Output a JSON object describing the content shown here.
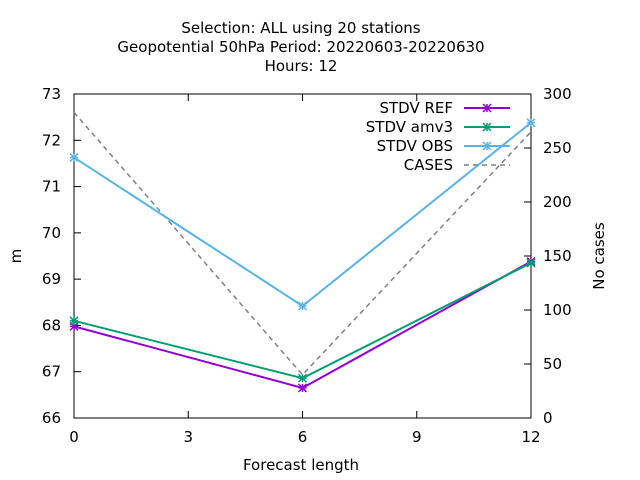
{
  "chart_data": {
    "type": "line",
    "title_lines": [
      "Selection: ALL using    20 stations",
      "Geopotential 50hPa   Period: 20220603-20220630",
      "Hours:  12"
    ],
    "xlabel": "Forecast length",
    "ylabel": "m",
    "y2label": "No cases",
    "xlim": [
      0,
      12
    ],
    "ylim": [
      66,
      73
    ],
    "y2lim": [
      0,
      300
    ],
    "xticks": [
      0,
      3,
      6,
      9,
      12
    ],
    "yticks": [
      66,
      67,
      68,
      69,
      70,
      71,
      72,
      73
    ],
    "y2ticks": [
      0,
      50,
      100,
      150,
      200,
      250,
      300
    ],
    "grid": false,
    "legend_position": "top-right",
    "x": [
      0,
      6,
      12
    ],
    "series": [
      {
        "name": "STDV REF",
        "axis": "y",
        "color": "#9400d3",
        "marker": "x-star",
        "dash": false,
        "values": [
          67.98,
          66.65,
          69.38
        ]
      },
      {
        "name": "STDV amv3",
        "axis": "y",
        "color": "#009e73",
        "marker": "x-star",
        "dash": false,
        "values": [
          68.1,
          66.86,
          69.35
        ]
      },
      {
        "name": "STDV OBS",
        "axis": "y",
        "color": "#56b4e9",
        "marker": "x-star",
        "dash": false,
        "values": [
          71.63,
          68.42,
          72.38
        ]
      },
      {
        "name": "CASES",
        "axis": "y2",
        "color": "#808080",
        "marker": "none",
        "dash": true,
        "values": [
          283,
          40,
          265
        ]
      }
    ]
  }
}
